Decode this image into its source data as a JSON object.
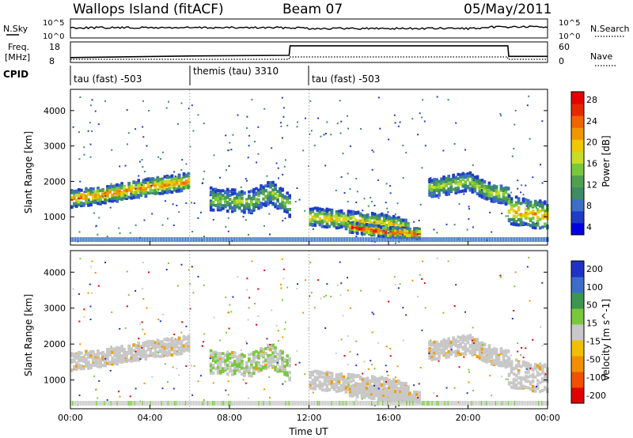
{
  "header": {
    "title": "Wallops Island (fitACF)",
    "beam": "Beam 07",
    "date": "05/May/2011"
  },
  "strip": {
    "nsky_label": "N.Sky",
    "nsearch_label": "N.Search",
    "freq_label_line1": "Freq.",
    "freq_label_line2": "[MHz]",
    "nave_label": "Nave",
    "cpid_label": "CPID",
    "nsky_ticks": [
      "10^5",
      "10^0"
    ],
    "nsearch_ticks": [
      "10^5",
      "10^0"
    ],
    "freq_ticks": [
      "18",
      "8"
    ],
    "nave_ticks": [
      "60",
      "0"
    ],
    "cpid_segments": [
      {
        "label": "tau (fast) -503",
        "start": 0,
        "end": 6
      },
      {
        "label": "themis (tau) 3310",
        "start": 6,
        "end": 12
      },
      {
        "label": "tau (fast) -503",
        "start": 12,
        "end": 24
      }
    ],
    "freq_series": [
      {
        "t": 0,
        "mhz": 9.9
      },
      {
        "t": 6,
        "mhz": 10.8
      },
      {
        "t": 11.0,
        "mhz": 11.2
      },
      {
        "t": 11.05,
        "mhz": 16.7
      },
      {
        "t": 22.0,
        "mhz": 16.7
      },
      {
        "t": 22.05,
        "mhz": 10.6
      },
      {
        "t": 24,
        "mhz": 10.6
      }
    ]
  },
  "chart_data": [
    {
      "type": "heatmap",
      "name": "Power",
      "xlabel": "",
      "ylabel": "Slant Range [km]",
      "x_ticks": [
        "00:00",
        "04:00",
        "08:00",
        "12:00",
        "16:00",
        "20:00",
        "00:00"
      ],
      "y_ticks": [
        "1000",
        "2000",
        "3000",
        "4000"
      ],
      "xlim": [
        0,
        24
      ],
      "ylim": [
        200,
        4600
      ],
      "colorbar": {
        "label": "Power [dB]",
        "ticks": [
          "28",
          "24",
          "20",
          "16",
          "12",
          "8",
          "4"
        ],
        "colors": [
          "#0000e0",
          "#1e3cc8",
          "#3c6ec8",
          "#3c8c64",
          "#50a050",
          "#78c83c",
          "#c8dc28",
          "#f0c800",
          "#f09600",
          "#f06400",
          "#e62800",
          "#e60000"
        ]
      },
      "bands": [
        {
          "t": [
            0,
            2,
            4,
            6
          ],
          "range": [
            1500,
            1650,
            1850,
            2000
          ],
          "width": 150,
          "level": 24
        },
        {
          "t": [
            7,
            9,
            10,
            11
          ],
          "range": [
            1500,
            1400,
            1700,
            1300
          ],
          "width": 200,
          "level": 14
        },
        {
          "t": [
            12,
            14,
            16,
            17
          ],
          "range": [
            1000,
            900,
            800,
            650
          ],
          "width": 160,
          "level": 20
        },
        {
          "t": [
            14,
            16,
            17.5
          ],
          "range": [
            700,
            550,
            520
          ],
          "width": 90,
          "level": 28
        },
        {
          "t": [
            18,
            20,
            21,
            22
          ],
          "range": [
            1800,
            2000,
            1700,
            1600
          ],
          "width": 160,
          "level": 16
        },
        {
          "t": [
            22,
            24
          ],
          "range": [
            1200,
            1000
          ],
          "width": 250,
          "level": 22
        }
      ]
    },
    {
      "type": "heatmap",
      "name": "Velocity",
      "xlabel": "Time UT",
      "ylabel": "Slant Range [km]",
      "x_ticks": [
        "00:00",
        "04:00",
        "08:00",
        "12:00",
        "16:00",
        "20:00",
        "00:00"
      ],
      "y_ticks": [
        "1000",
        "2000",
        "3000",
        "4000"
      ],
      "xlim": [
        0,
        24
      ],
      "ylim": [
        200,
        4600
      ],
      "colorbar": {
        "label": "Velocity [m s^-1]",
        "ticks": [
          "200",
          "100",
          "50",
          "15",
          "-15",
          "-50",
          "-100",
          "-200"
        ],
        "colors": [
          "#e00000",
          "#f05000",
          "#f09000",
          "#f0c000",
          "#c8c8c8",
          "#78c83c",
          "#3c9650",
          "#3c6ec8",
          "#1e32c8"
        ]
      }
    }
  ]
}
